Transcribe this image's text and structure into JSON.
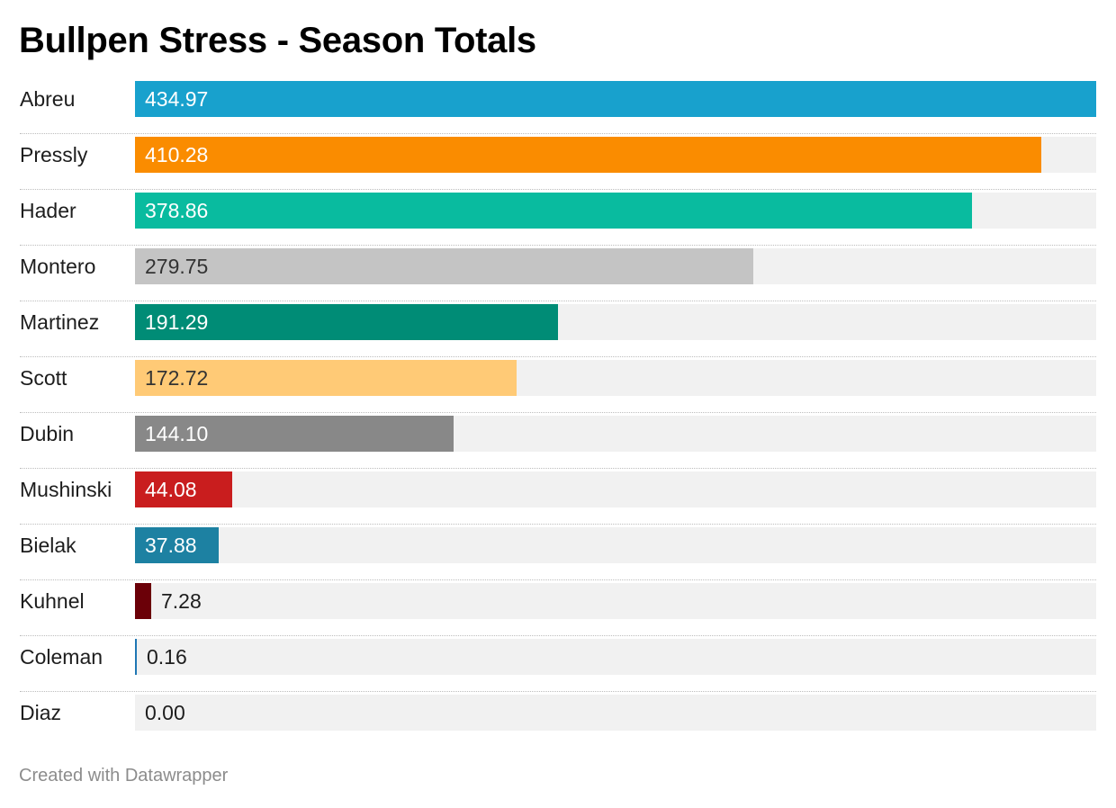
{
  "title": "Bullpen Stress - Season Totals",
  "footer": "Created with Datawrapper",
  "chart_data": {
    "type": "bar",
    "orientation": "horizontal",
    "title": "Bullpen Stress - Season Totals",
    "xlim": [
      0,
      434.97
    ],
    "grid": false,
    "value_labels": "inside-bar",
    "rows": [
      {
        "label": "Abreu",
        "value": 434.97,
        "display": "434.97",
        "color": "#18a1cd",
        "text_color": "#ffffff"
      },
      {
        "label": "Pressly",
        "value": 410.28,
        "display": "410.28",
        "color": "#fa8c00",
        "text_color": "#ffffff"
      },
      {
        "label": "Hader",
        "value": 378.86,
        "display": "378.86",
        "color": "#09bb9f",
        "text_color": "#ffffff"
      },
      {
        "label": "Montero",
        "value": 279.75,
        "display": "279.75",
        "color": "#c4c4c4",
        "text_color": "#333333"
      },
      {
        "label": "Martinez",
        "value": 191.29,
        "display": "191.29",
        "color": "#008c76",
        "text_color": "#ffffff"
      },
      {
        "label": "Scott",
        "value": 172.72,
        "display": "172.72",
        "color": "#ffca76",
        "text_color": "#333333"
      },
      {
        "label": "Dubin",
        "value": 144.1,
        "display": "144.10",
        "color": "#888888",
        "text_color": "#ffffff"
      },
      {
        "label": "Mushinski",
        "value": 44.08,
        "display": "44.08",
        "color": "#c91d1e",
        "text_color": "#ffffff"
      },
      {
        "label": "Bielak",
        "value": 37.88,
        "display": "37.88",
        "color": "#1d81a2",
        "text_color": "#ffffff"
      },
      {
        "label": "Kuhnel",
        "value": 7.28,
        "display": "7.28",
        "color": "#6b0008",
        "text_color": "#1d1d1d"
      },
      {
        "label": "Coleman",
        "value": 0.16,
        "display": "0.16",
        "color": "#1f77b4",
        "text_color": "#1d1d1d"
      },
      {
        "label": "Diaz",
        "value": 0.0,
        "display": "0.00",
        "color": "#1f77b4",
        "text_color": "#1d1d1d"
      }
    ]
  }
}
